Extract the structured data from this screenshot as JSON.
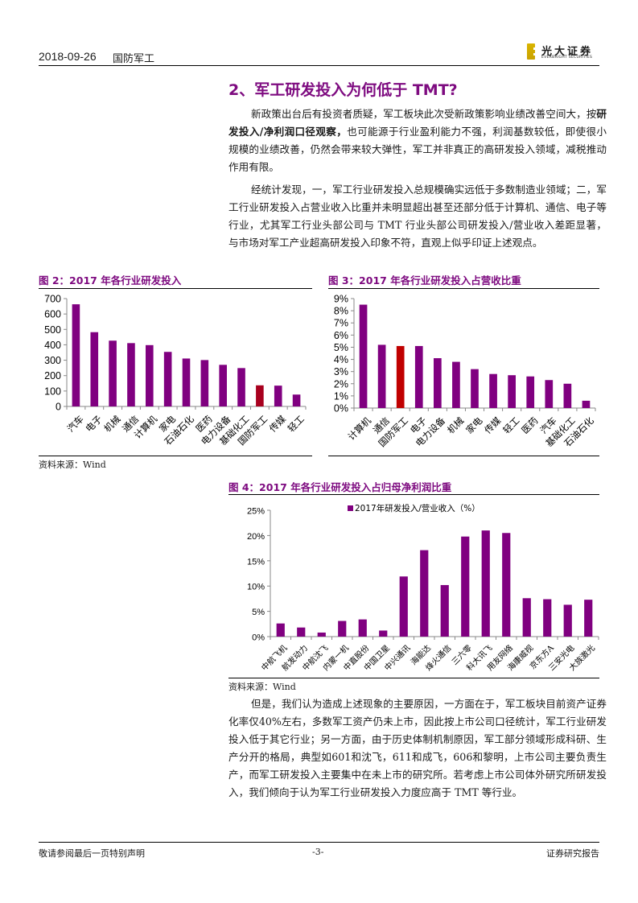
{
  "header": {
    "date": "2018-09-26",
    "sector": "国防军工",
    "logo_cn": "光大证券",
    "logo_en": "EVERBRIGHT SECURITIES"
  },
  "section": {
    "heading": "2、军工研发投入为何低于 TMT?"
  },
  "paragraphs": {
    "p1_a": "新政策出台后有投资者质疑，军工板块此次受新政策影响业绩改善空间大，按",
    "p1_bold": "研发投入/净利润口径观察，",
    "p1_b": "也可能源于行业盈利能力不强，利润基数较低，即使很小规模的业绩改善，仍然会带来较大弹性，军工并非真正的高研发投入领域，减税推动作用有限。",
    "p2": "经统计发现，一，军工行业研发投入总规模确实远低于多数制造业领域；二，军工行业研发投入占营业收入比重并未明显超出甚至还部分低于计算机、通信、电子等行业，尤其军工行业头部公司与 TMT 行业头部公司研发投入/营业收入差距显著，与市场对军工产业超高研发投入印象不符，直观上似乎印证上述观点。",
    "p3": "但是，我们认为造成上述现象的主要原因，一方面在于，军工板块目前资产证券化率仅40%左右，多数军工资产仍未上市，因此按上市公司口径统计，军工行业研发投入低于其它行业；另一方面，由于历史体制机制原因，军工部分领域形成科研、生产分开的格局，典型如601和沈飞，611和成飞，606和黎明，上市公司主要负责生产，而军工研发投入主要集中在未上市的研究所。若考虑上市公司体外研究所研发投入，我们倾向于认为军工行业研发投入力度应高于 TMT 等行业。"
  },
  "figures": {
    "fig2_title": "图 2：2017 年各行业研发投入",
    "fig3_title": "图 3：2017 年各行业研发投入占营收比重",
    "fig4_title": "图 4：2017 年各行业研发投入占归母净利润比重",
    "source_label": "资料来源：Wind"
  },
  "colors": {
    "bar": "#800080",
    "highlight": "#a8001e",
    "highlight2": "#c00000",
    "heading": "#7e0b80"
  },
  "chart_data": [
    {
      "type": "bar",
      "title": "图 2：2017 年各行业研发投入",
      "categories": [
        "汽车",
        "电子",
        "机械",
        "通信",
        "计算机",
        "家电",
        "石油石化",
        "医药",
        "电力设备",
        "基础化工",
        "国防军工",
        "传媒",
        "轻工"
      ],
      "values": [
        663,
        482,
        427,
        411,
        398,
        354,
        311,
        301,
        270,
        249,
        137,
        135,
        77
      ],
      "highlight_index": 10,
      "xlabel": "",
      "ylabel": "",
      "yticks": [
        0,
        100,
        200,
        300,
        400,
        500,
        600,
        700
      ],
      "ylim": [
        0,
        700
      ],
      "grid": false,
      "legend": null
    },
    {
      "type": "bar",
      "title": "图 3：2017 年各行业研发投入占营收比重",
      "categories": [
        "计算机",
        "通信",
        "国防军工",
        "电子",
        "电力设备",
        "机械",
        "家电",
        "传媒",
        "轻工",
        "医药",
        "汽车",
        "基础化工",
        "石油石化"
      ],
      "values": [
        8.5,
        5.2,
        5.1,
        5.1,
        4.1,
        3.8,
        3.2,
        2.8,
        2.7,
        2.6,
        2.3,
        2.0,
        0.6
      ],
      "unit": "%",
      "highlight_index": 2,
      "yticks": [
        "0%",
        "1%",
        "2%",
        "3%",
        "4%",
        "5%",
        "6%",
        "7%",
        "8%",
        "9%"
      ],
      "ylim": [
        0,
        9
      ],
      "grid": false,
      "legend": null
    },
    {
      "type": "bar",
      "title": "图 4：2017 年各行业研发投入占归母净利润比重",
      "categories": [
        "中航飞机",
        "航发动力",
        "中航沈飞",
        "内蒙一机",
        "中直股份",
        "中国卫星",
        "中兴通讯",
        "海能达",
        "烽火通信",
        "三六零",
        "科大讯飞",
        "用友网络",
        "海康威视",
        "京东方A",
        "三安光电",
        "大族激光"
      ],
      "series": [
        {
          "name": "2017年研发投入/营业收入（%）",
          "values": [
            2.6,
            1.8,
            0.8,
            3.1,
            3.4,
            1.2,
            11.9,
            17.1,
            10.2,
            19.8,
            21.0,
            20.5,
            7.6,
            7.4,
            6.3,
            7.3
          ]
        }
      ],
      "unit": "%",
      "yticks": [
        "0%",
        "5%",
        "10%",
        "15%",
        "20%",
        "25%"
      ],
      "ylim": [
        0,
        25
      ],
      "grid": false,
      "legend_position": "top"
    }
  ],
  "footer": {
    "left": "敬请参阅最后一页特别声明",
    "page": "-3-",
    "right": "证券研究报告"
  }
}
